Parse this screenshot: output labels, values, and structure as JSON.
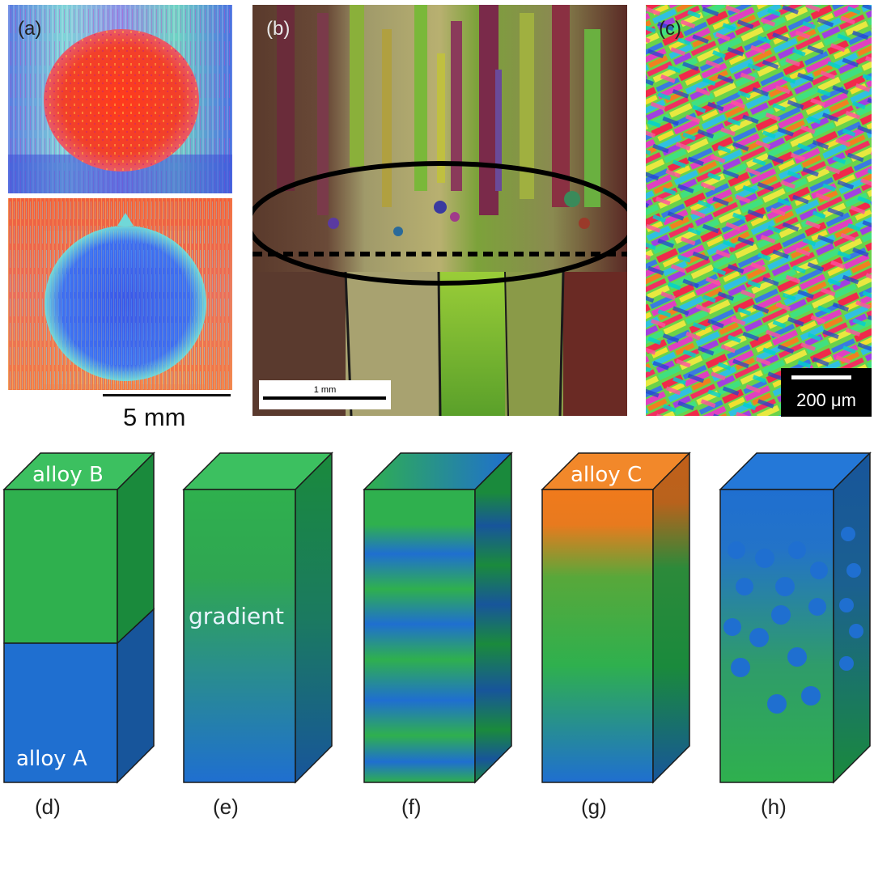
{
  "panel_labels": {
    "a": "(a)",
    "b": "(b)",
    "c": "(c)",
    "d": "(d)",
    "e": "(e)",
    "f": "(f)",
    "g": "(g)",
    "h": "(h)"
  },
  "scale_bars": {
    "a": "5 mm",
    "b": "1 mm",
    "c": "200 μm"
  },
  "cube_labels": {
    "d_top": "alloy B",
    "d_bottom": "alloy A",
    "e_middle": "gradient",
    "g_top": "alloy C"
  },
  "colors": {
    "green": "#2fae4f",
    "blue": "#1f6fc8",
    "orange": "#f07a1c",
    "dark_green": "#1a8a3c",
    "dark_blue": "#17539b"
  }
}
